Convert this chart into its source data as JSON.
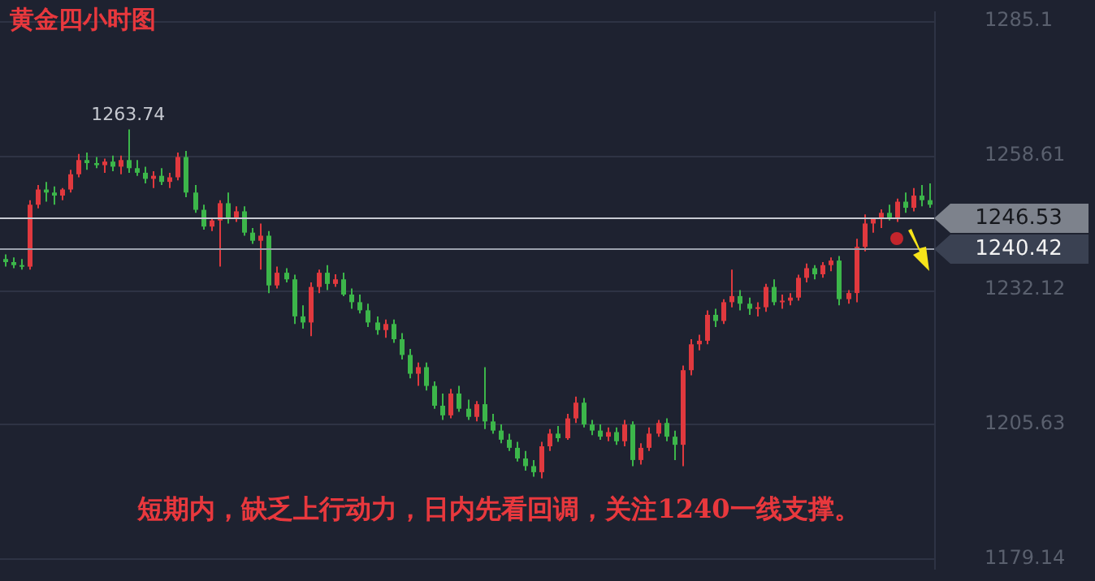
{
  "chart_data": {
    "type": "candlestick",
    "title": "黄金四小时图",
    "annotations": [
      "短期内，缺乏上行动力，日内先看回调，关注1240一线支撑。",
      {
        "text": "1263.74",
        "y": 1263.74
      }
    ],
    "ylim": [
      1177,
      1287
    ],
    "yticks": [
      1285.1,
      1258.61,
      1232.12,
      1205.63,
      1179.14
    ],
    "grid": "y",
    "tick_labels": "y",
    "ref_lines": [
      {
        "axis": "y",
        "value": 1246.53,
        "label": "1246.53",
        "color": "#c8cbd2"
      },
      {
        "axis": "y",
        "value": 1240.42,
        "label": "1240.42",
        "color": "#9da2ad"
      }
    ],
    "categories": [
      null,
      null,
      null,
      null,
      null,
      null,
      null,
      null,
      null,
      null,
      null,
      null,
      null,
      null,
      null,
      null,
      null,
      null,
      null,
      null,
      null,
      null,
      null,
      null,
      null,
      null,
      null,
      null,
      null,
      null,
      null,
      null,
      null,
      null,
      null,
      null,
      null,
      null,
      null,
      null,
      null,
      null,
      null,
      null,
      null,
      null,
      null,
      null,
      null,
      null,
      null,
      null,
      null,
      null,
      null,
      null,
      null,
      null,
      null,
      null,
      null,
      null,
      null,
      null,
      null,
      null,
      null,
      null,
      null,
      null,
      null,
      null,
      null,
      null,
      null,
      null,
      null,
      null,
      null,
      null,
      null,
      null,
      null,
      null,
      null,
      null,
      null,
      null,
      null,
      null,
      null,
      null,
      null,
      null,
      null,
      null,
      null,
      null,
      null,
      null,
      null,
      null,
      null,
      null,
      null,
      null,
      null,
      null,
      null,
      null,
      null,
      null,
      null
    ],
    "ohlc": [
      [
        1238.2,
        1239.1,
        1236.7,
        1237.6
      ],
      [
        1237.6,
        1238.5,
        1236.4,
        1237.0
      ],
      [
        1237.0,
        1238.2,
        1236.1,
        1236.7
      ],
      [
        1236.7,
        1249.8,
        1236.1,
        1248.9
      ],
      [
        1248.9,
        1252.8,
        1248.2,
        1251.9
      ],
      [
        1251.9,
        1253.4,
        1249.5,
        1251.3
      ],
      [
        1251.3,
        1252.5,
        1248.9,
        1250.7
      ],
      [
        1250.7,
        1252.2,
        1249.8,
        1251.9
      ],
      [
        1251.9,
        1255.8,
        1251.3,
        1254.9
      ],
      [
        1254.9,
        1258.9,
        1254.3,
        1257.7
      ],
      [
        1257.7,
        1259.2,
        1255.8,
        1257.1
      ],
      [
        1257.1,
        1258.3,
        1256.1,
        1256.7
      ],
      [
        1256.7,
        1258.0,
        1255.2,
        1257.4
      ],
      [
        1257.4,
        1258.6,
        1255.5,
        1256.4
      ],
      [
        1256.4,
        1258.6,
        1254.9,
        1257.7
      ],
      [
        1257.7,
        1263.74,
        1255.2,
        1256.1
      ],
      [
        1256.1,
        1257.7,
        1254.6,
        1255.2
      ],
      [
        1255.2,
        1256.4,
        1253.1,
        1254.0
      ],
      [
        1254.0,
        1255.5,
        1252.2,
        1254.6
      ],
      [
        1254.6,
        1256.1,
        1252.8,
        1253.4
      ],
      [
        1253.4,
        1255.2,
        1252.2,
        1254.3
      ],
      [
        1254.3,
        1259.2,
        1253.7,
        1258.3
      ],
      [
        1258.3,
        1259.5,
        1250.4,
        1251.3
      ],
      [
        1251.3,
        1252.8,
        1247.3,
        1247.9
      ],
      [
        1247.9,
        1248.9,
        1244.0,
        1244.6
      ],
      [
        1244.6,
        1246.1,
        1243.7,
        1245.8
      ],
      [
        1245.8,
        1249.8,
        1236.7,
        1249.2
      ],
      [
        1249.2,
        1251.3,
        1245.2,
        1246.4
      ],
      [
        1246.4,
        1248.6,
        1245.5,
        1247.6
      ],
      [
        1247.6,
        1248.6,
        1242.8,
        1243.4
      ],
      [
        1243.4,
        1244.3,
        1241.2,
        1241.8
      ],
      [
        1241.8,
        1245.2,
        1236.1,
        1242.8
      ],
      [
        1242.8,
        1243.7,
        1231.5,
        1233.0
      ],
      [
        1233.0,
        1236.7,
        1232.4,
        1235.5
      ],
      [
        1235.5,
        1236.4,
        1233.6,
        1234.2
      ],
      [
        1234.2,
        1235.1,
        1225.4,
        1226.9
      ],
      [
        1226.9,
        1229.1,
        1224.5,
        1225.7
      ],
      [
        1225.7,
        1233.6,
        1223.0,
        1232.7
      ],
      [
        1232.7,
        1236.1,
        1231.5,
        1235.5
      ],
      [
        1235.5,
        1237.0,
        1232.1,
        1233.3
      ],
      [
        1233.3,
        1235.2,
        1232.7,
        1234.2
      ],
      [
        1234.2,
        1235.5,
        1230.9,
        1231.2
      ],
      [
        1231.2,
        1232.4,
        1228.4,
        1229.7
      ],
      [
        1229.7,
        1231.2,
        1227.5,
        1228.1
      ],
      [
        1228.1,
        1229.4,
        1224.8,
        1225.7
      ],
      [
        1225.7,
        1226.9,
        1223.3,
        1224.2
      ],
      [
        1224.2,
        1226.3,
        1222.7,
        1225.4
      ],
      [
        1225.4,
        1226.3,
        1221.7,
        1222.4
      ],
      [
        1222.4,
        1223.6,
        1218.4,
        1219.3
      ],
      [
        1219.3,
        1220.5,
        1214.7,
        1215.6
      ],
      [
        1215.6,
        1217.8,
        1213.2,
        1216.9
      ],
      [
        1216.9,
        1217.8,
        1212.3,
        1213.2
      ],
      [
        1213.2,
        1214.1,
        1208.7,
        1209.3
      ],
      [
        1209.3,
        1211.7,
        1206.5,
        1207.4
      ],
      [
        1207.4,
        1212.6,
        1206.8,
        1211.7
      ],
      [
        1211.7,
        1213.2,
        1208.1,
        1208.7
      ],
      [
        1208.7,
        1210.5,
        1206.5,
        1207.1
      ],
      [
        1207.1,
        1210.2,
        1206.2,
        1209.6
      ],
      [
        1209.6,
        1216.9,
        1204.7,
        1206.2
      ],
      [
        1206.2,
        1207.7,
        1203.8,
        1204.4
      ],
      [
        1204.4,
        1205.6,
        1201.9,
        1202.6
      ],
      [
        1202.6,
        1203.8,
        1200.4,
        1201.0
      ],
      [
        1201.0,
        1202.2,
        1198.3,
        1198.9
      ],
      [
        1198.9,
        1200.4,
        1196.5,
        1197.4
      ],
      [
        1197.4,
        1198.6,
        1195.3,
        1196.2
      ],
      [
        1196.2,
        1202.2,
        1195.0,
        1201.3
      ],
      [
        1201.3,
        1204.7,
        1200.4,
        1203.8
      ],
      [
        1203.8,
        1205.3,
        1202.2,
        1202.9
      ],
      [
        1202.9,
        1207.7,
        1202.6,
        1206.8
      ],
      [
        1206.8,
        1211.1,
        1205.9,
        1209.9
      ],
      [
        1209.9,
        1210.8,
        1205.0,
        1205.6
      ],
      [
        1205.6,
        1206.5,
        1203.5,
        1204.4
      ],
      [
        1204.4,
        1205.6,
        1202.6,
        1203.2
      ],
      [
        1203.2,
        1205.0,
        1202.3,
        1204.1
      ],
      [
        1204.1,
        1205.0,
        1201.6,
        1202.3
      ],
      [
        1202.3,
        1206.5,
        1201.3,
        1205.6
      ],
      [
        1205.6,
        1206.2,
        1197.4,
        1198.6
      ],
      [
        1198.6,
        1201.9,
        1197.7,
        1201.0
      ],
      [
        1201.0,
        1205.0,
        1200.4,
        1203.8
      ],
      [
        1203.8,
        1206.5,
        1203.2,
        1205.9
      ],
      [
        1205.9,
        1206.8,
        1202.3,
        1203.2
      ],
      [
        1203.2,
        1204.4,
        1198.6,
        1201.6
      ],
      [
        1201.6,
        1217.2,
        1197.4,
        1216.3
      ],
      [
        1216.3,
        1222.4,
        1215.3,
        1221.4
      ],
      [
        1221.4,
        1223.3,
        1220.2,
        1222.1
      ],
      [
        1222.1,
        1228.1,
        1221.4,
        1227.2
      ],
      [
        1227.2,
        1228.4,
        1224.8,
        1226.0
      ],
      [
        1226.0,
        1230.3,
        1225.4,
        1229.7
      ],
      [
        1229.7,
        1236.1,
        1228.7,
        1230.9
      ],
      [
        1230.9,
        1232.1,
        1228.1,
        1229.4
      ],
      [
        1229.4,
        1230.6,
        1227.2,
        1228.4
      ],
      [
        1228.4,
        1229.7,
        1226.9,
        1228.7
      ],
      [
        1228.7,
        1233.3,
        1227.8,
        1232.7
      ],
      [
        1232.7,
        1234.2,
        1229.1,
        1229.7
      ],
      [
        1229.7,
        1231.2,
        1228.4,
        1230.0
      ],
      [
        1230.0,
        1231.5,
        1229.1,
        1230.6
      ],
      [
        1230.6,
        1235.1,
        1230.0,
        1234.5
      ],
      [
        1234.5,
        1237.3,
        1233.6,
        1236.4
      ],
      [
        1236.4,
        1237.0,
        1234.2,
        1235.2
      ],
      [
        1235.2,
        1237.6,
        1234.5,
        1237.0
      ],
      [
        1237.0,
        1238.5,
        1235.8,
        1237.9
      ],
      [
        1237.9,
        1238.8,
        1229.1,
        1230.3
      ],
      [
        1230.3,
        1232.1,
        1229.4,
        1231.5
      ],
      [
        1231.5,
        1242.2,
        1229.7,
        1240.6
      ],
      [
        1240.6,
        1247.0,
        1239.7,
        1245.2
      ],
      [
        1245.2,
        1246.4,
        1243.4,
        1246.1
      ],
      [
        1246.1,
        1248.0,
        1244.3,
        1247.3
      ],
      [
        1247.3,
        1248.9,
        1245.8,
        1246.4
      ],
      [
        1246.4,
        1250.1,
        1245.5,
        1249.5
      ],
      [
        1249.5,
        1251.3,
        1247.3,
        1248.3
      ],
      [
        1248.3,
        1252.2,
        1247.6,
        1250.7
      ],
      [
        1250.7,
        1252.8,
        1248.6,
        1249.8
      ],
      [
        1249.8,
        1253.1,
        1248.3,
        1248.9
      ]
    ],
    "colors": [
      "#3cb64a",
      "#3cb64a",
      "#3cb64a",
      "#e0393e",
      "#e0393e",
      "#3cb64a",
      "#3cb64a",
      "#e0393e",
      "#e0393e",
      "#e0393e",
      "#3cb64a",
      "#3cb64a",
      "#e0393e",
      "#3cb64a",
      "#e0393e",
      "#3cb64a",
      "#3cb64a",
      "#3cb64a",
      "#e0393e",
      "#3cb64a",
      "#e0393e",
      "#e0393e",
      "#3cb64a",
      "#3cb64a",
      "#3cb64a",
      "#e0393e",
      "#e0393e",
      "#3cb64a",
      "#e0393e",
      "#3cb64a",
      "#3cb64a",
      "#e0393e",
      "#3cb64a",
      "#e0393e",
      "#3cb64a",
      "#3cb64a",
      "#3cb64a",
      "#e0393e",
      "#e0393e",
      "#3cb64a",
      "#e0393e",
      "#3cb64a",
      "#3cb64a",
      "#3cb64a",
      "#3cb64a",
      "#3cb64a",
      "#e0393e",
      "#3cb64a",
      "#3cb64a",
      "#3cb64a",
      "#e0393e",
      "#3cb64a",
      "#3cb64a",
      "#3cb64a",
      "#e0393e",
      "#3cb64a",
      "#3cb64a",
      "#e0393e",
      "#3cb64a",
      "#3cb64a",
      "#3cb64a",
      "#3cb64a",
      "#3cb64a",
      "#3cb64a",
      "#3cb64a",
      "#e0393e",
      "#e0393e",
      "#3cb64a",
      "#e0393e",
      "#e0393e",
      "#3cb64a",
      "#3cb64a",
      "#3cb64a",
      "#e0393e",
      "#3cb64a",
      "#e0393e",
      "#3cb64a",
      "#e0393e",
      "#e0393e",
      "#e0393e",
      "#3cb64a",
      "#3cb64a",
      "#e0393e",
      "#e0393e",
      "#e0393e",
      "#e0393e",
      "#3cb64a",
      "#e0393e",
      "#e0393e",
      "#3cb64a",
      "#3cb64a",
      "#e0393e",
      "#e0393e",
      "#3cb64a",
      "#e0393e",
      "#e0393e",
      "#e0393e",
      "#e0393e",
      "#3cb64a",
      "#e0393e",
      "#e0393e",
      "#3cb64a",
      "#e0393e",
      "#e0393e",
      "#e0393e",
      "#e0393e",
      "#e0393e",
      "#3cb64a",
      "#e0393e",
      "#3cb64a",
      "#e0393e",
      "#3cb64a",
      "#3cb64a"
    ]
  }
}
